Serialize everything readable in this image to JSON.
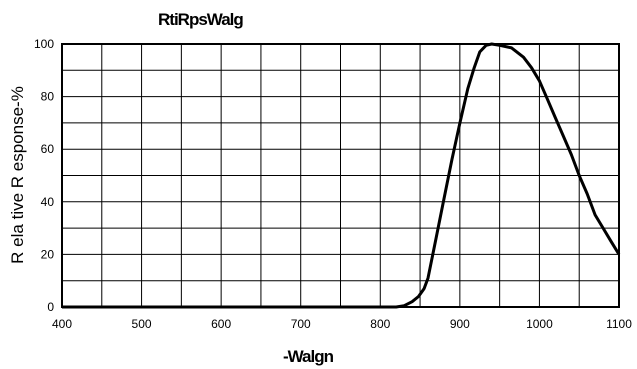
{
  "chart_data": {
    "type": "line",
    "title": "RtiRpsWalg",
    "xlabel": "-Walgn",
    "ylabel": "R ela tive R esponse-%",
    "xlim": [
      400,
      1100
    ],
    "ylim": [
      0,
      100
    ],
    "x_ticks": [
      "400",
      "500",
      "600",
      "700",
      "800",
      "900",
      "1000",
      "1100"
    ],
    "y_ticks": [
      "0",
      "20",
      "40",
      "60",
      "80",
      "100"
    ],
    "grid": true,
    "series": [
      {
        "x": [
          400,
          820,
          830,
          840,
          848,
          855,
          860,
          870,
          880,
          890,
          900,
          910,
          918,
          925,
          933,
          940,
          950,
          965,
          980,
          990,
          1000,
          1010,
          1020,
          1030,
          1040,
          1050,
          1060,
          1070,
          1080,
          1090,
          1100
        ],
        "y": [
          0,
          0,
          0.5,
          2,
          4,
          7,
          11,
          26,
          41,
          56,
          70,
          83,
          91,
          97,
          99.5,
          100,
          99.5,
          98.5,
          95,
          91,
          86,
          79,
          72,
          65,
          58,
          50,
          43,
          35,
          30,
          25,
          20
        ]
      }
    ]
  }
}
